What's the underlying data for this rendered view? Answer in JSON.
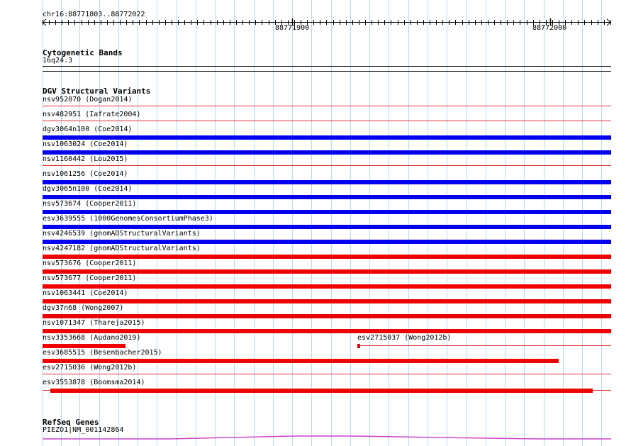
{
  "locus": "chr16:88771803..88772022",
  "ruler": {
    "ticks": [
      "88771900",
      "88772000"
    ]
  },
  "colors": {
    "grid": "#b4dcef",
    "gain": "#0000ee",
    "loss": "#ee0000",
    "thin": "#dd3333",
    "gene": "#cc44cc",
    "axis": "#000000"
  },
  "cytoband": {
    "title": "Cytogenetic Bands",
    "band": "16q24.3"
  },
  "dgv": {
    "title": "DGV Structural Variants",
    "variants": [
      {
        "id": "nsv952070",
        "study": "(Dogan2014)",
        "style": "thin"
      },
      {
        "id": "nsv482951",
        "study": "(Iafrate2004)",
        "style": "thin"
      },
      {
        "id": "dgv3064n100",
        "study": "(Coe2014)",
        "style": "gain"
      },
      {
        "id": "nsv1063024",
        "study": "(Coe2014)",
        "style": "gain"
      },
      {
        "id": "nsv1160442",
        "study": "(Lou2015)",
        "style": "thin"
      },
      {
        "id": "nsv1061256",
        "study": "(Coe2014)",
        "style": "gain"
      },
      {
        "id": "dgv3065n100",
        "study": "(Coe2014)",
        "style": "gain"
      },
      {
        "id": "nsv573674",
        "study": "(Cooper2011)",
        "style": "gain"
      },
      {
        "id": "esv3639555",
        "study": "(1000GenomesConsortiumPhase3)",
        "style": "gain"
      },
      {
        "id": "nsv4246539",
        "study": "(gnomADStructuralVariants)",
        "style": "gain"
      },
      {
        "id": "nsv4247182",
        "study": "(gnomADStructuralVariants)",
        "style": "loss"
      },
      {
        "id": "nsv573676",
        "study": "(Cooper2011)",
        "style": "loss"
      },
      {
        "id": "nsv573677",
        "study": "(Cooper2011)",
        "style": "loss"
      },
      {
        "id": "nsv1063441",
        "study": "(Coe2014)",
        "style": "loss"
      },
      {
        "id": "dgv37n68",
        "study": "(Wong2007)",
        "style": "loss"
      },
      {
        "id": "nsv1071347",
        "study": "(Thareja2015)",
        "style": "loss"
      },
      {
        "id": "nsv3353668",
        "study": "(Audano2019)",
        "style": "loss"
      },
      {
        "id": "esv2715037",
        "study": "(Wong2012b)",
        "style": "loss"
      },
      {
        "id": "esv3685515",
        "study": "(Besenbacher2015)",
        "style": "loss"
      },
      {
        "id": "esv2715036",
        "study": "(Wong2012b)",
        "style": "thin"
      },
      {
        "id": "esv3553878",
        "study": "(Boomsma2014)",
        "style": "loss"
      }
    ]
  },
  "refseq": {
    "title": "RefSeq Genes",
    "transcript": "PIEZO1|NM_001142864"
  }
}
